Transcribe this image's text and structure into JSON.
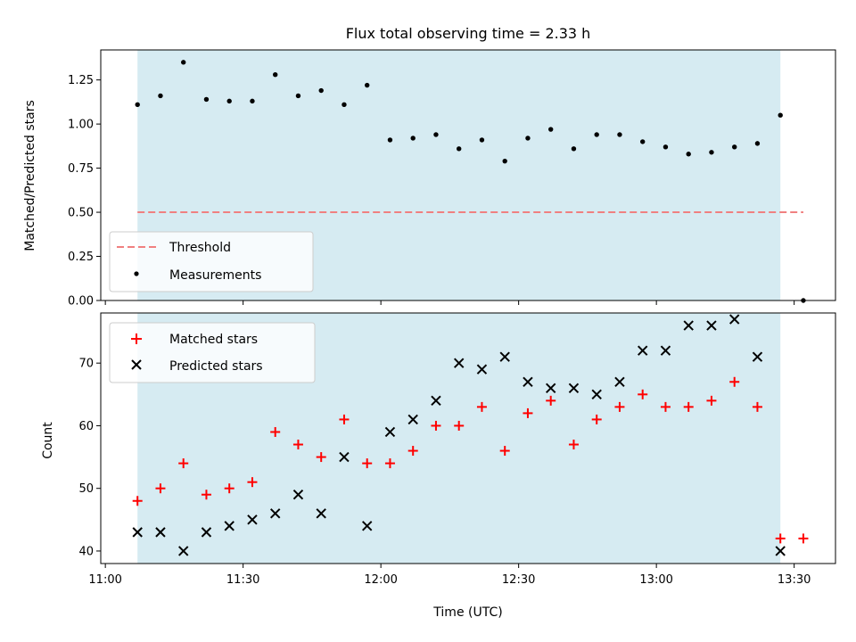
{
  "chart_data": [
    {
      "type": "scatter",
      "title": "Flux total observing time = 2.33 h",
      "xlabel": "",
      "ylabel": "Matched/Predicted stars",
      "ylim": [
        0,
        1.42
      ],
      "yticks": [
        "0.00",
        "0.25",
        "0.50",
        "0.75",
        "1.00",
        "1.25"
      ],
      "grid": false,
      "legend_position": "lower-left",
      "shaded_span": {
        "start": "11:07",
        "end": "13:27",
        "color": "#add8e6"
      },
      "threshold": {
        "name": "Threshold",
        "value": 0.5,
        "x_start": "11:07",
        "x_end": "13:32",
        "color": "#f08080",
        "style": "dashed"
      },
      "series": [
        {
          "name": "Measurements",
          "color": "#000000",
          "marker": "dot",
          "points": [
            [
              "11:07",
              1.11
            ],
            [
              "11:12",
              1.16
            ],
            [
              "11:17",
              1.35
            ],
            [
              "11:22",
              1.14
            ],
            [
              "11:27",
              1.13
            ],
            [
              "11:32",
              1.13
            ],
            [
              "11:37",
              1.28
            ],
            [
              "11:42",
              1.16
            ],
            [
              "11:47",
              1.19
            ],
            [
              "11:52",
              1.11
            ],
            [
              "11:57",
              1.22
            ],
            [
              "12:02",
              0.91
            ],
            [
              "12:07",
              0.92
            ],
            [
              "12:12",
              0.94
            ],
            [
              "12:17",
              0.86
            ],
            [
              "12:22",
              0.91
            ],
            [
              "12:27",
              0.79
            ],
            [
              "12:32",
              0.92
            ],
            [
              "12:37",
              0.97
            ],
            [
              "12:42",
              0.86
            ],
            [
              "12:47",
              0.94
            ],
            [
              "12:52",
              0.94
            ],
            [
              "12:57",
              0.9
            ],
            [
              "13:02",
              0.87
            ],
            [
              "13:07",
              0.83
            ],
            [
              "13:12",
              0.84
            ],
            [
              "13:17",
              0.87
            ],
            [
              "13:22",
              0.89
            ],
            [
              "13:27",
              1.05
            ],
            [
              "13:32",
              0.0
            ]
          ]
        }
      ]
    },
    {
      "type": "scatter",
      "title": "",
      "xlabel": "Time (UTC)",
      "ylabel": "Count",
      "ylim": [
        38,
        78
      ],
      "yticks": [
        "40",
        "50",
        "60",
        "70"
      ],
      "xticks": [
        "11:00",
        "11:30",
        "12:00",
        "12:30",
        "13:00",
        "13:30"
      ],
      "xlim": [
        "10:59",
        "13:39"
      ],
      "grid": false,
      "legend_position": "top-left",
      "shaded_span": {
        "start": "11:07",
        "end": "13:27",
        "color": "#add8e6"
      },
      "series": [
        {
          "name": "Matched stars",
          "color": "#ff0000",
          "marker": "plus",
          "points": [
            [
              "11:07",
              48
            ],
            [
              "11:12",
              50
            ],
            [
              "11:17",
              54
            ],
            [
              "11:22",
              49
            ],
            [
              "11:27",
              50
            ],
            [
              "11:32",
              51
            ],
            [
              "11:37",
              59
            ],
            [
              "11:42",
              57
            ],
            [
              "11:47",
              55
            ],
            [
              "11:52",
              61
            ],
            [
              "11:57",
              54
            ],
            [
              "12:02",
              54
            ],
            [
              "12:07",
              56
            ],
            [
              "12:12",
              60
            ],
            [
              "12:17",
              60
            ],
            [
              "12:22",
              63
            ],
            [
              "12:27",
              56
            ],
            [
              "12:32",
              62
            ],
            [
              "12:37",
              64
            ],
            [
              "12:42",
              57
            ],
            [
              "12:47",
              61
            ],
            [
              "12:52",
              63
            ],
            [
              "12:57",
              65
            ],
            [
              "13:02",
              63
            ],
            [
              "13:07",
              63
            ],
            [
              "13:12",
              64
            ],
            [
              "13:17",
              67
            ],
            [
              "13:22",
              63
            ],
            [
              "13:27",
              42
            ],
            [
              "13:32",
              42
            ]
          ]
        },
        {
          "name": "Predicted stars",
          "color": "#000000",
          "marker": "x",
          "points": [
            [
              "11:07",
              43
            ],
            [
              "11:12",
              43
            ],
            [
              "11:17",
              40
            ],
            [
              "11:22",
              43
            ],
            [
              "11:27",
              44
            ],
            [
              "11:32",
              45
            ],
            [
              "11:37",
              46
            ],
            [
              "11:42",
              49
            ],
            [
              "11:47",
              46
            ],
            [
              "11:52",
              55
            ],
            [
              "11:57",
              44
            ],
            [
              "12:02",
              59
            ],
            [
              "12:07",
              61
            ],
            [
              "12:12",
              64
            ],
            [
              "12:17",
              70
            ],
            [
              "12:22",
              69
            ],
            [
              "12:27",
              71
            ],
            [
              "12:32",
              67
            ],
            [
              "12:37",
              66
            ],
            [
              "12:42",
              66
            ],
            [
              "12:47",
              65
            ],
            [
              "12:52",
              67
            ],
            [
              "12:57",
              72
            ],
            [
              "13:02",
              72
            ],
            [
              "13:07",
              76
            ],
            [
              "13:12",
              76
            ],
            [
              "13:17",
              77
            ],
            [
              "13:22",
              71
            ],
            [
              "13:27",
              40
            ]
          ]
        }
      ]
    }
  ]
}
